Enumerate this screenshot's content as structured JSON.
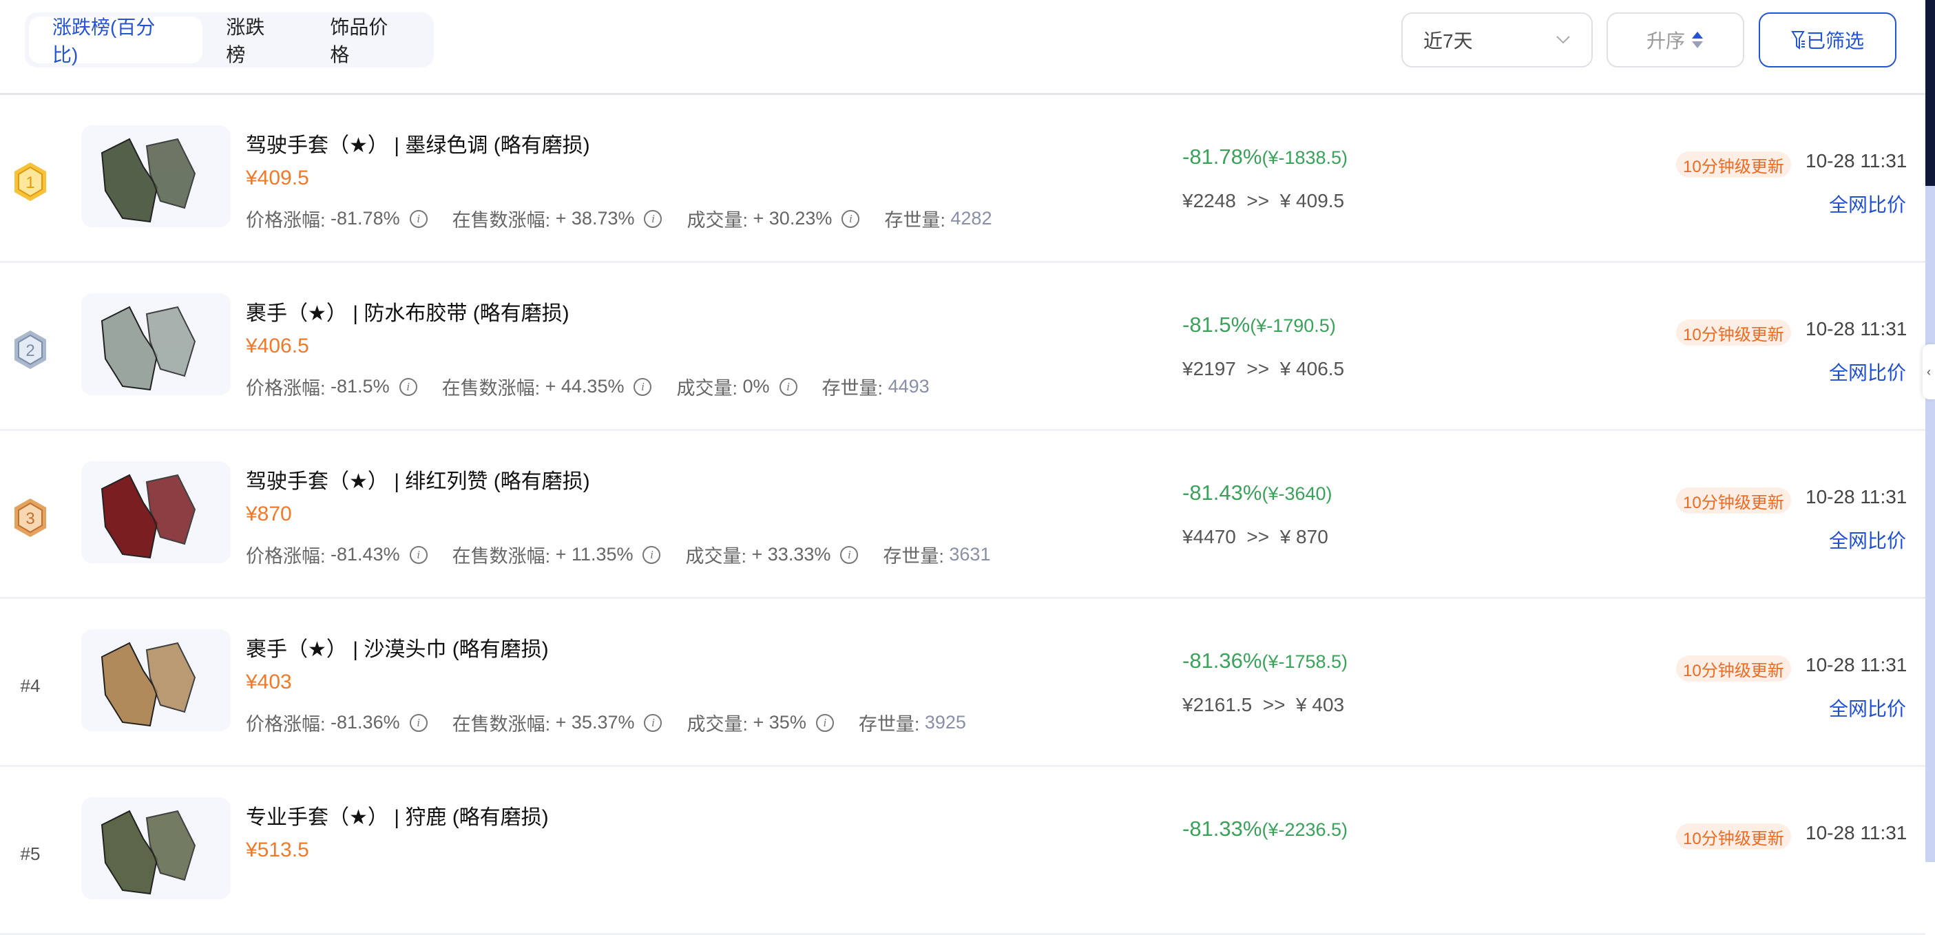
{
  "tabs": [
    {
      "label": "涨跌榜(百分比)",
      "active": true
    },
    {
      "label": "涨跌榜"
    },
    {
      "label": "饰品价格"
    }
  ],
  "controls": {
    "period": "近7天",
    "sort": "升序",
    "filter": "已筛选"
  },
  "colors": {
    "accent": "#2453d6",
    "price": "#f07a2a",
    "down": "#3aa25a",
    "badge_bg": "#fdeee6",
    "badge_text": "#f06a20"
  },
  "labels": {
    "price_change": "价格涨幅:",
    "listing_change": "在售数涨幅:",
    "volume": "成交量:",
    "stock": "存世量:",
    "badge": "10分钟级更新",
    "compare": "全网比价"
  },
  "items": [
    {
      "rank": "1",
      "medal": "gold",
      "name": "驾驶手套（★） | 墨绿色调 (略有磨损)",
      "price": "¥409.5",
      "price_change": "-81.78%",
      "listing_change": "+ 38.73%",
      "volume": "+ 30.23%",
      "stock": "4282",
      "change": "-81.78%",
      "change_amt": "(¥-1838.5)",
      "from": "¥2248",
      "to": "¥ 409.5",
      "time": "10-28 11:31",
      "glove": "#55604a"
    },
    {
      "rank": "2",
      "medal": "silver",
      "name": "裹手（★） | 防水布胶带 (略有磨损)",
      "price": "¥406.5",
      "price_change": "-81.5%",
      "listing_change": "+ 44.35%",
      "volume": "0%",
      "stock": "4493",
      "change": "-81.5%",
      "change_amt": "(¥-1790.5)",
      "from": "¥2197",
      "to": "¥ 406.5",
      "time": "10-28 11:31",
      "glove": "#9aa5a0"
    },
    {
      "rank": "3",
      "medal": "bronze",
      "name": "驾驶手套（★） | 绯红列赞 (略有磨损)",
      "price": "¥870",
      "price_change": "-81.43%",
      "listing_change": "+ 11.35%",
      "volume": "+ 33.33%",
      "stock": "3631",
      "change": "-81.43%",
      "change_amt": "(¥-3640)",
      "from": "¥4470",
      "to": "¥ 870",
      "time": "10-28 11:31",
      "glove": "#7a1e22"
    },
    {
      "rank": "#4",
      "name": "裹手（★） | 沙漠头巾 (略有磨损)",
      "price": "¥403",
      "price_change": "-81.36%",
      "listing_change": "+ 35.37%",
      "volume": "+ 35%",
      "stock": "3925",
      "change": "-81.36%",
      "change_amt": "(¥-1758.5)",
      "from": "¥2161.5",
      "to": "¥ 403",
      "time": "10-28 11:31",
      "glove": "#b08a5a"
    },
    {
      "rank": "#5",
      "name": "专业手套（★） | 狩鹿 (略有磨损)",
      "price": "¥513.5",
      "change": "-81.33%",
      "change_amt": "(¥-2236.5)",
      "time": "10-28 11:31",
      "glove": "#5c6648"
    }
  ]
}
